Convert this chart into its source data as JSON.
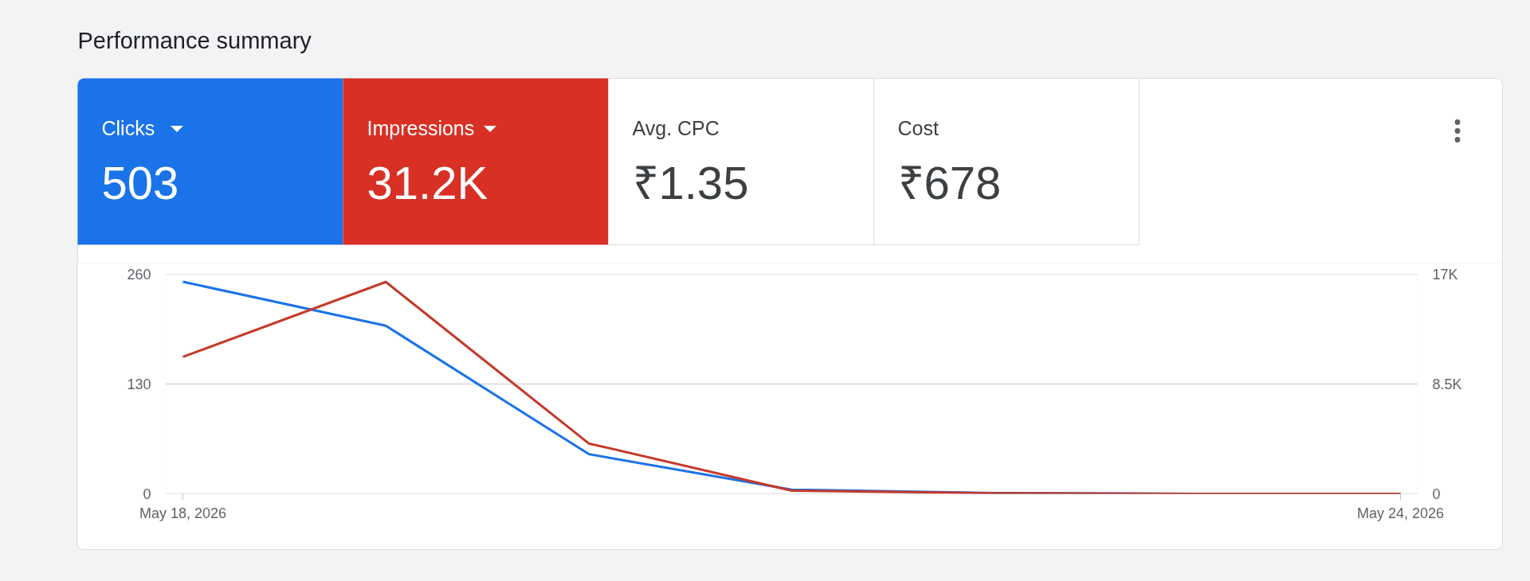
{
  "chart_data": [
    {
      "type": "other",
      "title": "Performance summary",
      "categories": [
        "Clicks",
        "Impressions",
        "Avg. CPC",
        "Cost"
      ],
      "value_labels": [
        "503",
        "31.2K",
        "₹1.35",
        "₹678"
      ],
      "colors": [
        "#1a73e8",
        "#d93025",
        "#ffffff",
        "#ffffff"
      ]
    },
    {
      "type": "line",
      "categories": [
        "May 18, 2026",
        null,
        null,
        null,
        null,
        null,
        "May 24, 2026"
      ],
      "series": [
        {
          "color": "#1a73e8",
          "values": [
            251,
            199,
            47,
            5,
            1,
            0,
            0
          ]
        },
        {
          "color": "#c53929",
          "axis": "y2",
          "values": [
            10600,
            16400,
            3900,
            250,
            50,
            0,
            0
          ]
        }
      ],
      "ylim": [
        0,
        260
      ],
      "yticks": [
        0,
        130,
        260
      ],
      "y2lim": [
        0,
        17000
      ],
      "y2ticks": [
        0,
        {
          "value": 8500,
          "label": "8.5K"
        },
        {
          "value": 17000,
          "label": "17K"
        }
      ],
      "grid": "y"
    }
  ]
}
